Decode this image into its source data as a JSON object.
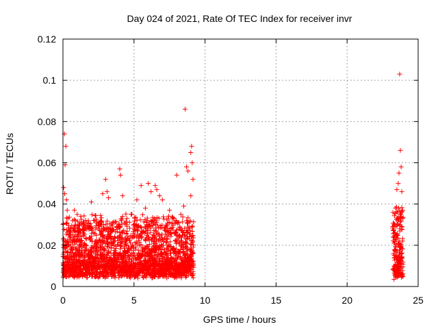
{
  "chart_data": {
    "type": "scatter",
    "title": "Day 024 of 2021, Rate Of TEC Index for receiver invr",
    "xlabel": "GPS time / hours",
    "ylabel": "ROTI / TECUs",
    "xlim": [
      0,
      25
    ],
    "ylim": [
      0,
      0.12
    ],
    "xticks": [
      0,
      5,
      10,
      15,
      20,
      25
    ],
    "xtick_labels": [
      "0",
      "5",
      "10",
      "15",
      "20",
      "25"
    ],
    "yticks": [
      0,
      0.02,
      0.04,
      0.06,
      0.08,
      0.1,
      0.12
    ],
    "ytick_labels": [
      "0",
      "0.02",
      "0.04",
      "0.06",
      "0.08",
      "0.1",
      "0.12"
    ],
    "grid": true,
    "marker": "+",
    "color": "#ff0000",
    "series": [
      {
        "name": "ROTI",
        "x": [
          0.05,
          0.1,
          0.2,
          0.15,
          0.12,
          0.3,
          0.25,
          0.35,
          0.5,
          0.8,
          1.0,
          1.2,
          1.5,
          1.8,
          2.0,
          2.2,
          2.5,
          2.8,
          3.0,
          3.1,
          3.2,
          3.5,
          3.8,
          4.0,
          4.05,
          4.2,
          4.5,
          4.8,
          5.2,
          5.5,
          5.8,
          6.0,
          6.2,
          6.5,
          6.6,
          6.8,
          7.0,
          7.5,
          7.8,
          8.0,
          8.3,
          8.6,
          8.7,
          8.8,
          9.0,
          9.05,
          9.1,
          9.15,
          0.4,
          1.1,
          2.7,
          3.3,
          4.1,
          5.0,
          6.3,
          7.2,
          8.5,
          9.0,
          23.3,
          23.4,
          23.5,
          23.6,
          23.65,
          23.7,
          23.75,
          23.8,
          23.85,
          23.9,
          23.5,
          23.6,
          23.8,
          23.7,
          23.4,
          23.9
        ],
        "y": [
          0.048,
          0.074,
          0.068,
          0.059,
          0.045,
          0.037,
          0.042,
          0.033,
          0.028,
          0.037,
          0.035,
          0.031,
          0.027,
          0.029,
          0.041,
          0.032,
          0.028,
          0.045,
          0.052,
          0.046,
          0.043,
          0.031,
          0.029,
          0.057,
          0.054,
          0.044,
          0.033,
          0.035,
          0.042,
          0.049,
          0.038,
          0.05,
          0.046,
          0.049,
          0.047,
          0.044,
          0.042,
          0.037,
          0.033,
          0.054,
          0.035,
          0.086,
          0.058,
          0.056,
          0.065,
          0.068,
          0.06,
          0.052,
          0.025,
          0.028,
          0.022,
          0.024,
          0.026,
          0.03,
          0.032,
          0.027,
          0.039,
          0.044,
          0.03,
          0.038,
          0.047,
          0.05,
          0.055,
          0.103,
          0.066,
          0.058,
          0.046,
          0.037,
          0.025,
          0.02,
          0.032,
          0.028,
          0.015,
          0.022
        ]
      }
    ],
    "dense_bands": [
      {
        "x_start": 0.0,
        "x_end": 9.2,
        "y_min": 0.004,
        "y_max": 0.03
      },
      {
        "x_start": 23.2,
        "x_end": 23.95,
        "y_min": 0.003,
        "y_max": 0.035
      }
    ]
  }
}
